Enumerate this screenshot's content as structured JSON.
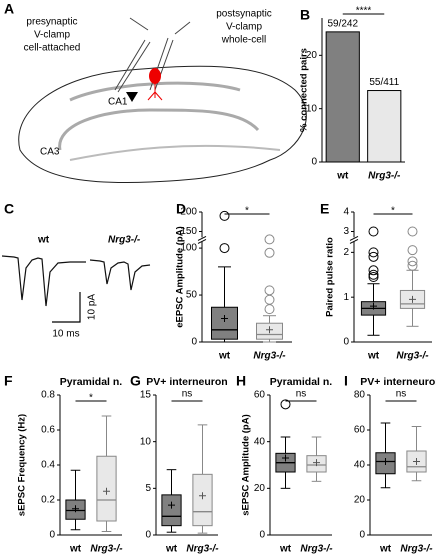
{
  "diagram_a": {
    "panel": "A",
    "pre_lines": [
      "presynaptic",
      "V-clamp",
      "cell-attached"
    ],
    "post_lines": [
      "postsynaptic",
      "V-clamp",
      "whole-cell"
    ],
    "ca1": "CA1",
    "ca3": "CA3"
  },
  "traces_c": {
    "panel": "C",
    "wt": "wt",
    "ko": "Nrg3-/-",
    "time_scale": "10 ms",
    "current_scale": "10 pA"
  },
  "chart_data": [
    {
      "panel": "B",
      "type": "bar",
      "ylabel": "% connected pairs",
      "categories": [
        "wt",
        "Nrg3-/-"
      ],
      "values": [
        24.4,
        13.4
      ],
      "value_labels": [
        "59/242",
        "55/411"
      ],
      "colors": [
        "#808080",
        "#e8e8e8"
      ],
      "ylim": [
        0,
        27
      ],
      "yticks": [
        0,
        10,
        20
      ],
      "significance": "****"
    },
    {
      "panel": "D",
      "type": "box",
      "ylabel": "eEPSC Amplitude (pA)",
      "categories": [
        "wt",
        "Nrg3-/-"
      ],
      "colors": [
        "#808080",
        "#e8e8e8"
      ],
      "ylim": [
        0,
        200
      ],
      "axis_break": [
        105,
        140
      ],
      "yticks": [
        0,
        50,
        100,
        150,
        200
      ],
      "significance": "*",
      "boxes": [
        {
          "whislo": 0,
          "q1": 3,
          "med": 13,
          "q3": 37,
          "whishi": 80,
          "mean": 25,
          "fliers": [
            100,
            190
          ]
        },
        {
          "whislo": 0,
          "q1": 3,
          "med": 8,
          "q3": 20,
          "whishi": 28,
          "mean": 13,
          "fliers": [
            35,
            45,
            55,
            95,
            125
          ]
        }
      ]
    },
    {
      "panel": "E",
      "type": "box",
      "ylabel": "Paired pulse ratio",
      "categories": [
        "wt",
        "Nrg3-/-"
      ],
      "colors": [
        "#808080",
        "#e8e8e8"
      ],
      "ylim": [
        0,
        4
      ],
      "axis_break": [
        2.2,
        2.8
      ],
      "yticks": [
        0,
        1,
        2,
        3,
        4
      ],
      "significance": "*",
      "boxes": [
        {
          "whislo": 0.15,
          "q1": 0.6,
          "med": 0.75,
          "q3": 0.9,
          "whishi": 1.3,
          "mean": 0.8,
          "fliers": [
            1.45,
            1.5,
            1.6,
            1.9,
            2.0,
            3.0
          ]
        },
        {
          "whislo": 0.35,
          "q1": 0.75,
          "med": 0.85,
          "q3": 1.15,
          "whishi": 1.6,
          "mean": 0.95,
          "fliers": [
            1.7,
            1.8,
            2.05,
            3.0
          ]
        }
      ]
    },
    {
      "panel": "F",
      "type": "box",
      "title": "Pyramidal n.",
      "ylabel": "sEPSC Frequency (Hz)",
      "categories": [
        "wt",
        "Nrg3-/-"
      ],
      "colors": [
        "#808080",
        "#e8e8e8"
      ],
      "ylim": [
        0,
        0.8
      ],
      "yticks": [
        0,
        0.2,
        0.4,
        0.6,
        0.8
      ],
      "significance": "*",
      "boxes": [
        {
          "whislo": 0.03,
          "q1": 0.09,
          "med": 0.14,
          "q3": 0.2,
          "whishi": 0.37,
          "mean": 0.15,
          "fliers": []
        },
        {
          "whislo": 0.02,
          "q1": 0.08,
          "med": 0.2,
          "q3": 0.45,
          "whishi": 0.68,
          "mean": 0.25,
          "fliers": []
        }
      ]
    },
    {
      "panel": "G",
      "type": "box",
      "title": "PV+ interneuron",
      "categories": [
        "wt",
        "Nrg3-/-"
      ],
      "colors": [
        "#808080",
        "#e8e8e8"
      ],
      "ylim": [
        0,
        15
      ],
      "yticks": [
        0,
        5,
        10,
        15
      ],
      "significance": "ns",
      "boxes": [
        {
          "whislo": 0.3,
          "q1": 1,
          "med": 2,
          "q3": 4.3,
          "whishi": 7,
          "mean": 3.2,
          "fliers": []
        },
        {
          "whislo": 0.2,
          "q1": 1,
          "med": 2.5,
          "q3": 6.5,
          "whishi": 11.8,
          "mean": 4.2,
          "fliers": []
        }
      ]
    },
    {
      "panel": "H",
      "type": "box",
      "title": "Pyramidal n.",
      "ylabel": "sEPSC Amplitude (pA)",
      "categories": [
        "wt",
        "Nrg3-/-"
      ],
      "colors": [
        "#808080",
        "#e8e8e8"
      ],
      "ylim": [
        0,
        60
      ],
      "yticks": [
        0,
        20,
        40,
        60
      ],
      "significance": "ns",
      "boxes": [
        {
          "whislo": 20,
          "q1": 27,
          "med": 31,
          "q3": 35,
          "whishi": 42,
          "mean": 33,
          "fliers": [
            56
          ]
        },
        {
          "whislo": 23,
          "q1": 27,
          "med": 30,
          "q3": 34,
          "whishi": 42,
          "mean": 31,
          "fliers": []
        }
      ]
    },
    {
      "panel": "I",
      "type": "box",
      "title": "PV+ interneuron",
      "categories": [
        "wt",
        "Nrg3-/-"
      ],
      "colors": [
        "#808080",
        "#e8e8e8"
      ],
      "ylim": [
        0,
        80
      ],
      "yticks": [
        0,
        20,
        40,
        60,
        80
      ],
      "significance": "ns",
      "boxes": [
        {
          "whislo": 27,
          "q1": 35,
          "med": 42,
          "q3": 47,
          "whishi": 64,
          "mean": 42,
          "fliers": []
        },
        {
          "whislo": 31,
          "q1": 36,
          "med": 39,
          "q3": 48,
          "whishi": 62,
          "mean": 42,
          "fliers": []
        }
      ]
    }
  ]
}
